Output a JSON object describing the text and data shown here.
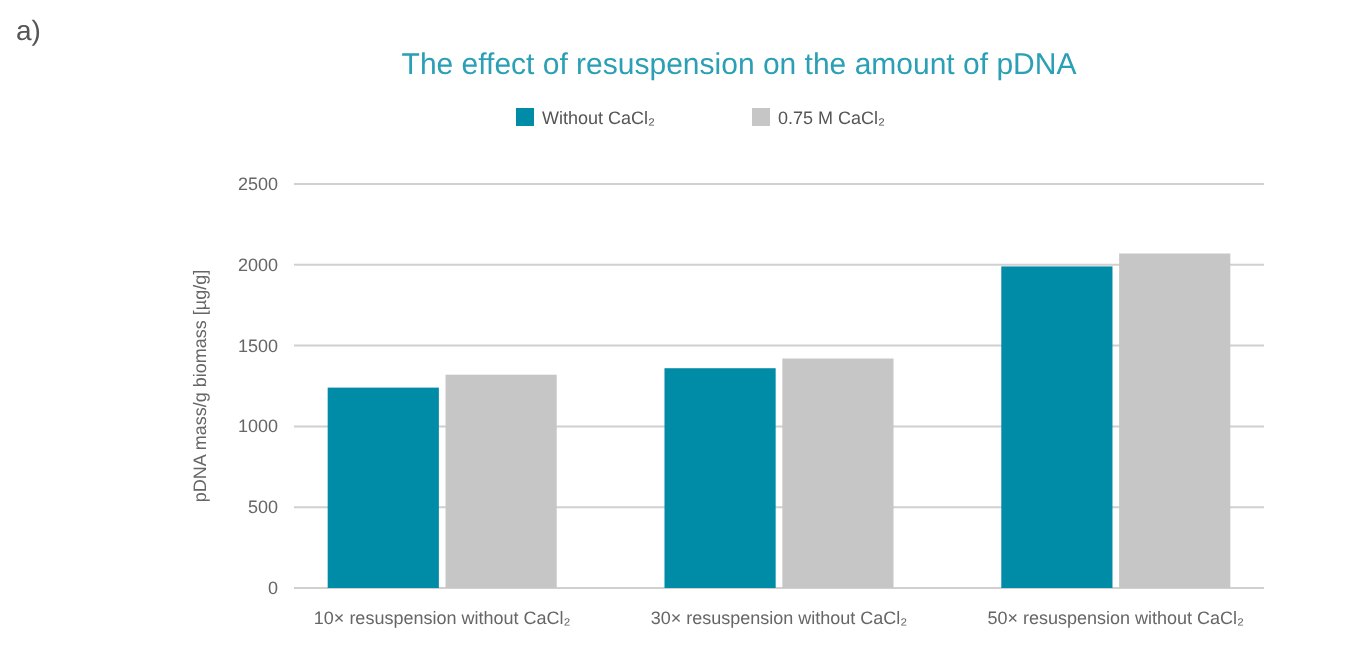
{
  "chart_data": {
    "type": "bar",
    "title": "The effect of resuspension on the amount of pDNA",
    "ylabel": "pDNA mass/g biomass [µg/g]",
    "categories": [
      "10× resuspension without CaCl₂",
      "30× resuspension without CaCl₂",
      "50× resuspension without CaCl₂"
    ],
    "series": [
      {
        "name": "Without CaCl₂",
        "color": "#008ba6",
        "values": [
          1240,
          1360,
          1990
        ]
      },
      {
        "name": "0.75 M CaCl₂",
        "color": "#c6c6c6",
        "values": [
          1320,
          1420,
          2070
        ]
      }
    ],
    "ylim": [
      0,
      2500
    ],
    "yticks": [
      0,
      500,
      1000,
      1500,
      2000,
      2500
    ],
    "grid": "y",
    "legend": "top",
    "annotations": [
      "a)"
    ]
  }
}
